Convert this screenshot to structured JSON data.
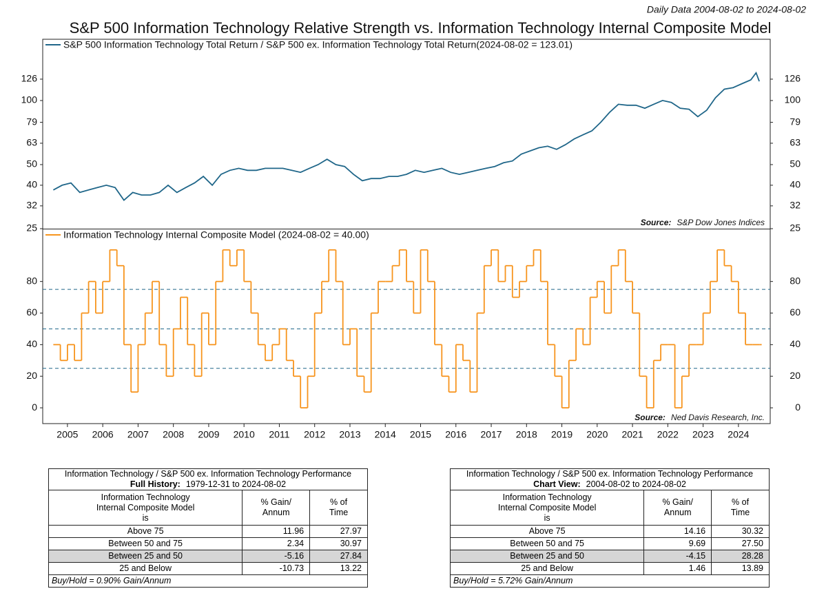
{
  "header": "Daily Data 2004-08-02 to 2024-08-02",
  "title": "S&P 500 Information Technology Relative Strength vs. Information Technology Internal Composite Model",
  "chart_data": [
    {
      "type": "line",
      "log_scale": true,
      "grid": false,
      "x": [
        2004.6,
        2004.85,
        2005.1,
        2005.35,
        2005.6,
        2005.85,
        2006.1,
        2006.35,
        2006.6,
        2006.85,
        2007.1,
        2007.35,
        2007.6,
        2007.85,
        2008.1,
        2008.35,
        2008.6,
        2008.85,
        2009.1,
        2009.35,
        2009.6,
        2009.85,
        2010.1,
        2010.35,
        2010.6,
        2010.85,
        2011.1,
        2011.35,
        2011.6,
        2011.85,
        2012.1,
        2012.35,
        2012.6,
        2012.85,
        2013.1,
        2013.35,
        2013.6,
        2013.85,
        2014.1,
        2014.35,
        2014.6,
        2014.85,
        2015.1,
        2015.35,
        2015.6,
        2015.85,
        2016.1,
        2016.35,
        2016.6,
        2016.85,
        2017.1,
        2017.35,
        2017.6,
        2017.85,
        2018.1,
        2018.35,
        2018.6,
        2018.85,
        2019.1,
        2019.35,
        2019.6,
        2019.85,
        2020.1,
        2020.35,
        2020.6,
        2020.85,
        2021.1,
        2021.35,
        2021.6,
        2021.85,
        2022.1,
        2022.35,
        2022.6,
        2022.85,
        2023.1,
        2023.35,
        2023.6,
        2023.85,
        2024.1,
        2024.35,
        2024.5,
        2024.59
      ],
      "series": [
        {
          "name": "S&P 500 Information Technology Total Return / S&P 500 ex. Information Technology Total Return(2024-08-02 = 123.01)",
          "color": "#1f6689",
          "values": [
            38,
            40,
            41,
            37,
            38,
            39,
            40,
            39,
            34,
            37,
            36,
            36,
            37,
            40,
            37,
            39,
            41,
            44,
            40,
            45,
            47,
            48,
            47,
            47,
            48,
            48,
            48,
            47,
            46,
            48,
            50,
            53,
            50,
            49,
            45,
            42,
            43,
            43,
            44,
            44,
            45,
            47,
            46,
            47,
            48,
            46,
            45,
            46,
            47,
            48,
            49,
            51,
            52,
            56,
            58,
            60,
            61,
            59,
            62,
            66,
            69,
            72,
            79,
            88,
            96,
            95,
            95,
            92,
            96,
            100,
            98,
            92,
            91,
            84,
            90,
            103,
            113,
            115,
            120,
            125,
            135,
            123.01
          ]
        }
      ],
      "xlim": [
        2004.3,
        2024.9
      ],
      "xticks": [
        2005,
        2006,
        2007,
        2008,
        2009,
        2010,
        2011,
        2012,
        2013,
        2014,
        2015,
        2016,
        2017,
        2018,
        2019,
        2020,
        2021,
        2022,
        2023,
        2024
      ],
      "ylim": [
        25,
        194
      ],
      "yticks": [
        25,
        32,
        40,
        50,
        63,
        79,
        100,
        126
      ],
      "source_label": "Source:",
      "source": "S&P Dow Jones Indices"
    },
    {
      "type": "step",
      "grid": false,
      "x": [
        2004.6,
        2004.8,
        2005.0,
        2005.2,
        2005.4,
        2005.6,
        2005.8,
        2006.0,
        2006.2,
        2006.4,
        2006.6,
        2006.8,
        2007.0,
        2007.2,
        2007.4,
        2007.6,
        2007.8,
        2008.0,
        2008.2,
        2008.4,
        2008.6,
        2008.8,
        2009.0,
        2009.2,
        2009.4,
        2009.6,
        2009.8,
        2010.0,
        2010.2,
        2010.4,
        2010.6,
        2010.8,
        2011.0,
        2011.2,
        2011.4,
        2011.6,
        2011.8,
        2012.0,
        2012.2,
        2012.4,
        2012.6,
        2012.8,
        2013.0,
        2013.2,
        2013.4,
        2013.6,
        2013.8,
        2014.0,
        2014.2,
        2014.4,
        2014.6,
        2014.8,
        2015.0,
        2015.2,
        2015.4,
        2015.6,
        2015.8,
        2016.0,
        2016.2,
        2016.4,
        2016.6,
        2016.8,
        2017.0,
        2017.2,
        2017.4,
        2017.6,
        2017.8,
        2018.0,
        2018.2,
        2018.4,
        2018.6,
        2018.8,
        2019.0,
        2019.2,
        2019.4,
        2019.6,
        2019.8,
        2020.0,
        2020.2,
        2020.4,
        2020.6,
        2020.8,
        2021.0,
        2021.2,
        2021.4,
        2021.6,
        2021.8,
        2022.0,
        2022.2,
        2022.4,
        2022.6,
        2022.8,
        2023.0,
        2023.2,
        2023.4,
        2023.6,
        2023.8,
        2024.0,
        2024.2,
        2024.4,
        2024.6
      ],
      "series": [
        {
          "name": "Information Technology Internal Composite Model (2024-08-02 = 40.00)",
          "color": "#f7941d",
          "values": [
            40,
            30,
            40,
            30,
            60,
            80,
            60,
            80,
            100,
            90,
            40,
            10,
            40,
            60,
            80,
            40,
            20,
            50,
            70,
            40,
            20,
            60,
            40,
            80,
            100,
            90,
            100,
            80,
            60,
            40,
            30,
            40,
            50,
            30,
            20,
            0,
            20,
            60,
            80,
            100,
            80,
            40,
            50,
            20,
            10,
            60,
            80,
            80,
            90,
            100,
            80,
            60,
            100,
            80,
            40,
            20,
            10,
            40,
            30,
            10,
            60,
            90,
            100,
            80,
            90,
            70,
            80,
            90,
            100,
            80,
            40,
            20,
            0,
            30,
            50,
            40,
            70,
            80,
            60,
            90,
            100,
            80,
            60,
            20,
            0,
            30,
            40,
            40,
            0,
            20,
            40,
            40,
            60,
            80,
            100,
            90,
            80,
            60,
            40,
            40,
            40
          ]
        }
      ],
      "reference_lines": [
        25,
        50,
        75
      ],
      "reference_color": "#1f6689",
      "xlim": [
        2004.3,
        2024.9
      ],
      "xticks": [
        2005,
        2006,
        2007,
        2008,
        2009,
        2010,
        2011,
        2012,
        2013,
        2014,
        2015,
        2016,
        2017,
        2018,
        2019,
        2020,
        2021,
        2022,
        2023,
        2024
      ],
      "ylim": [
        -10,
        113
      ],
      "yticks": [
        0,
        20,
        40,
        60,
        80
      ],
      "source_label": "Source:",
      "source": "Ned Davis Research, Inc."
    }
  ],
  "tables": [
    {
      "title": "Information Technology / S&P 500 ex. Information Technology Performance",
      "period_label": "Full History:",
      "period": "1979-12-31 to 2024-08-02",
      "columns": [
        [
          "Information Technology",
          "Internal Composite Model",
          "is"
        ],
        [
          "% Gain/",
          "Annum"
        ],
        [
          "% of",
          "Time"
        ]
      ],
      "rows": [
        [
          "Above 75",
          "11.96",
          "27.97"
        ],
        [
          "Between 50 and 75",
          "2.34",
          "30.97"
        ],
        [
          "Between 25 and 50",
          "-5.16",
          "27.84"
        ],
        [
          "25 and Below",
          "-10.73",
          "13.22"
        ]
      ],
      "footnote": "Buy/Hold = 0.90% Gain/Annum"
    },
    {
      "title": "Information Technology / S&P 500 ex. Information Technology Performance",
      "period_label": "Chart View:",
      "period": "2004-08-02 to 2024-08-02",
      "columns": [
        [
          "Information Technology",
          "Internal Composite Model",
          "is"
        ],
        [
          "% Gain/",
          "Annum"
        ],
        [
          "% of",
          "Time"
        ]
      ],
      "rows": [
        [
          "Above 75",
          "14.16",
          "30.32"
        ],
        [
          "Between 50 and 75",
          "9.69",
          "27.50"
        ],
        [
          "Between 25 and 50",
          "-4.15",
          "28.28"
        ],
        [
          "25 and Below",
          "1.46",
          "13.89"
        ]
      ],
      "footnote": "Buy/Hold = 5.72% Gain/Annum"
    }
  ]
}
